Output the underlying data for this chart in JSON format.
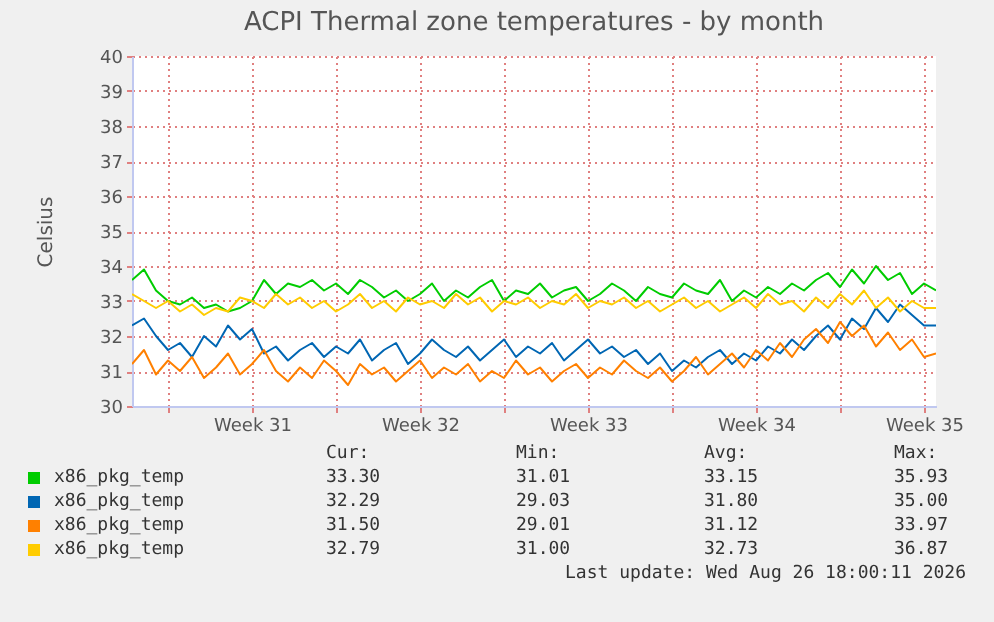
{
  "chart_data": {
    "type": "line",
    "title": "ACPI Thermal zone temperatures - by month",
    "ylabel": "Celsius",
    "x": [
      "2026-07-25T12:00",
      "2026-07-26T00:00",
      "2026-07-26T12:00",
      "2026-07-27T00:00",
      "2026-07-27T12:00",
      "2026-07-28T00:00",
      "2026-07-28T12:00",
      "2026-07-29T00:00",
      "2026-07-29T12:00",
      "2026-07-30T00:00",
      "2026-07-30T12:00",
      "2026-07-31T00:00",
      "2026-07-31T12:00",
      "2026-08-01T00:00",
      "2026-08-01T12:00",
      "2026-08-02T00:00",
      "2026-08-02T12:00",
      "2026-08-03T00:00",
      "2026-08-03T12:00",
      "2026-08-04T00:00",
      "2026-08-04T12:00",
      "2026-08-05T00:00",
      "2026-08-05T12:00",
      "2026-08-06T00:00",
      "2026-08-06T12:00",
      "2026-08-07T00:00",
      "2026-08-07T12:00",
      "2026-08-08T00:00",
      "2026-08-08T12:00",
      "2026-08-09T00:00",
      "2026-08-09T12:00",
      "2026-08-10T00:00",
      "2026-08-10T12:00",
      "2026-08-11T00:00",
      "2026-08-11T12:00",
      "2026-08-12T00:00",
      "2026-08-12T12:00",
      "2026-08-13T00:00",
      "2026-08-13T12:00",
      "2026-08-14T00:00",
      "2026-08-14T12:00",
      "2026-08-15T00:00",
      "2026-08-15T12:00",
      "2026-08-16T00:00",
      "2026-08-16T12:00",
      "2026-08-17T00:00",
      "2026-08-17T12:00",
      "2026-08-18T00:00",
      "2026-08-18T12:00",
      "2026-08-19T00:00",
      "2026-08-19T12:00",
      "2026-08-20T00:00",
      "2026-08-20T12:00",
      "2026-08-21T00:00",
      "2026-08-21T12:00",
      "2026-08-22T00:00",
      "2026-08-22T12:00",
      "2026-08-23T00:00",
      "2026-08-23T12:00",
      "2026-08-24T00:00",
      "2026-08-24T12:00",
      "2026-08-25T00:00",
      "2026-08-25T12:00",
      "2026-08-26T00:00",
      "2026-08-26T12:00",
      "2026-08-27T00:00",
      "2026-08-27T12:00",
      "2026-08-28T00:00"
    ],
    "series": [
      {
        "name": "x86_pkg_temp",
        "color": "#00cc00",
        "values": [
          33.6,
          33.9,
          33.3,
          33.0,
          32.9,
          33.1,
          32.8,
          32.9,
          32.7,
          32.8,
          33.0,
          33.6,
          33.2,
          33.5,
          33.4,
          33.6,
          33.3,
          33.5,
          33.2,
          33.6,
          33.4,
          33.1,
          33.3,
          33.0,
          33.2,
          33.5,
          33.0,
          33.3,
          33.1,
          33.4,
          33.6,
          33.0,
          33.3,
          33.2,
          33.5,
          33.1,
          33.3,
          33.4,
          33.0,
          33.2,
          33.5,
          33.3,
          33.0,
          33.4,
          33.2,
          33.1,
          33.5,
          33.3,
          33.2,
          33.6,
          33.0,
          33.3,
          33.1,
          33.4,
          33.2,
          33.5,
          33.3,
          33.6,
          33.8,
          33.4,
          33.9,
          33.5,
          34.0,
          33.6,
          33.8,
          33.2,
          33.5,
          33.3
        ]
      },
      {
        "name": "x86_pkg_temp",
        "color": "#0066b3",
        "values": [
          32.3,
          32.5,
          32.0,
          31.6,
          31.8,
          31.4,
          32.0,
          31.7,
          32.3,
          31.9,
          32.2,
          31.5,
          31.7,
          31.3,
          31.6,
          31.8,
          31.4,
          31.7,
          31.5,
          31.9,
          31.3,
          31.6,
          31.8,
          31.2,
          31.5,
          31.9,
          31.6,
          31.4,
          31.7,
          31.3,
          31.6,
          31.9,
          31.4,
          31.7,
          31.5,
          31.8,
          31.3,
          31.6,
          31.9,
          31.5,
          31.7,
          31.4,
          31.6,
          31.2,
          31.5,
          31.0,
          31.3,
          31.1,
          31.4,
          31.6,
          31.2,
          31.5,
          31.3,
          31.7,
          31.5,
          31.9,
          31.6,
          32.0,
          32.3,
          31.9,
          32.5,
          32.2,
          32.8,
          32.4,
          32.9,
          32.6,
          32.3,
          32.3
        ]
      },
      {
        "name": "x86_pkg_temp",
        "color": "#ff8000",
        "values": [
          31.2,
          31.6,
          30.9,
          31.3,
          31.0,
          31.4,
          30.8,
          31.1,
          31.5,
          30.9,
          31.2,
          31.6,
          31.0,
          30.7,
          31.1,
          30.8,
          31.3,
          31.0,
          30.6,
          31.2,
          30.9,
          31.1,
          30.7,
          31.0,
          31.3,
          30.8,
          31.1,
          30.9,
          31.2,
          30.7,
          31.0,
          30.8,
          31.3,
          30.9,
          31.1,
          30.7,
          31.0,
          31.2,
          30.8,
          31.1,
          30.9,
          31.3,
          31.0,
          30.8,
          31.1,
          30.7,
          31.0,
          31.4,
          30.9,
          31.2,
          31.5,
          31.1,
          31.6,
          31.3,
          31.8,
          31.4,
          31.9,
          32.2,
          31.8,
          32.4,
          32.0,
          32.3,
          31.7,
          32.1,
          31.6,
          31.9,
          31.4,
          31.5
        ]
      },
      {
        "name": "x86_pkg_temp",
        "color": "#ffcc00",
        "values": [
          33.2,
          33.0,
          32.8,
          33.0,
          32.7,
          32.9,
          32.6,
          32.8,
          32.7,
          33.1,
          33.0,
          32.8,
          33.2,
          32.9,
          33.1,
          32.8,
          33.0,
          32.7,
          32.9,
          33.2,
          32.8,
          33.0,
          32.7,
          33.1,
          32.9,
          33.0,
          32.8,
          33.2,
          32.9,
          33.1,
          32.7,
          33.0,
          32.9,
          33.1,
          32.8,
          33.0,
          32.9,
          33.2,
          32.8,
          33.0,
          32.9,
          33.1,
          32.8,
          33.0,
          32.7,
          32.9,
          33.1,
          32.8,
          33.0,
          32.7,
          32.9,
          33.1,
          32.8,
          33.2,
          32.9,
          33.0,
          32.7,
          33.1,
          32.8,
          33.2,
          32.9,
          33.3,
          32.8,
          33.1,
          32.7,
          33.0,
          32.8,
          32.8
        ]
      }
    ],
    "xlim": [
      "2026-07-25T12:00",
      "2026-08-28T00:00"
    ],
    "xticks": [
      {
        "value": "2026-07-27",
        "label": null
      },
      {
        "value": "2026-07-30T12:00",
        "label": "Week 31"
      },
      {
        "value": "2026-08-03",
        "label": null
      },
      {
        "value": "2026-08-06T12:00",
        "label": "Week 32"
      },
      {
        "value": "2026-08-10",
        "label": null
      },
      {
        "value": "2026-08-13T12:00",
        "label": "Week 33"
      },
      {
        "value": "2026-08-17",
        "label": null
      },
      {
        "value": "2026-08-20T12:00",
        "label": "Week 34"
      },
      {
        "value": "2026-08-24",
        "label": null
      },
      {
        "value": "2026-08-27T12:00",
        "label": "Week 35"
      }
    ],
    "ylim": [
      30,
      40
    ],
    "yticks": [
      30,
      31,
      32,
      33,
      34,
      35,
      36,
      37,
      38,
      39,
      40
    ],
    "grid": true,
    "legend": "bottom",
    "line_style": "solid",
    "annotations": [
      "Cur:",
      "Min:",
      "Avg:",
      "Max:",
      "33.30",
      "31.01",
      "33.15",
      "35.93",
      "32.29",
      "29.03",
      "31.80",
      "35.00",
      "31.50",
      "29.01",
      "31.12",
      "33.97",
      "32.79",
      "31.00",
      "32.73",
      "36.87",
      "Last update: Wed Aug 26 18:00:11 2026"
    ]
  }
}
